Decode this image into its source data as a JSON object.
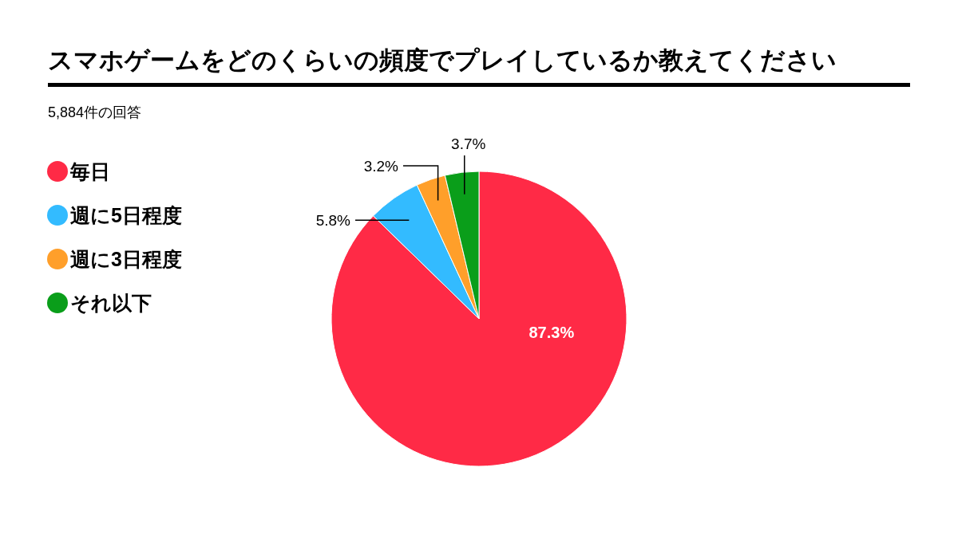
{
  "chart_data": {
    "type": "pie",
    "title": "スマホゲームをどのくらいの頻度でプレイしているか教えてください",
    "subtitle": "5,884件の回答",
    "categories": [
      "毎日",
      "週に5日程度",
      "週に3日程度",
      "それ以下"
    ],
    "values": [
      87.3,
      5.8,
      3.2,
      3.7
    ],
    "colors": [
      "#ff2a46",
      "#33bbff",
      "#ff9f2a",
      "#0a9e1a"
    ],
    "value_labels": [
      "87.3%",
      "5.8%",
      "3.2%",
      "3.7%"
    ],
    "legend": "left"
  }
}
